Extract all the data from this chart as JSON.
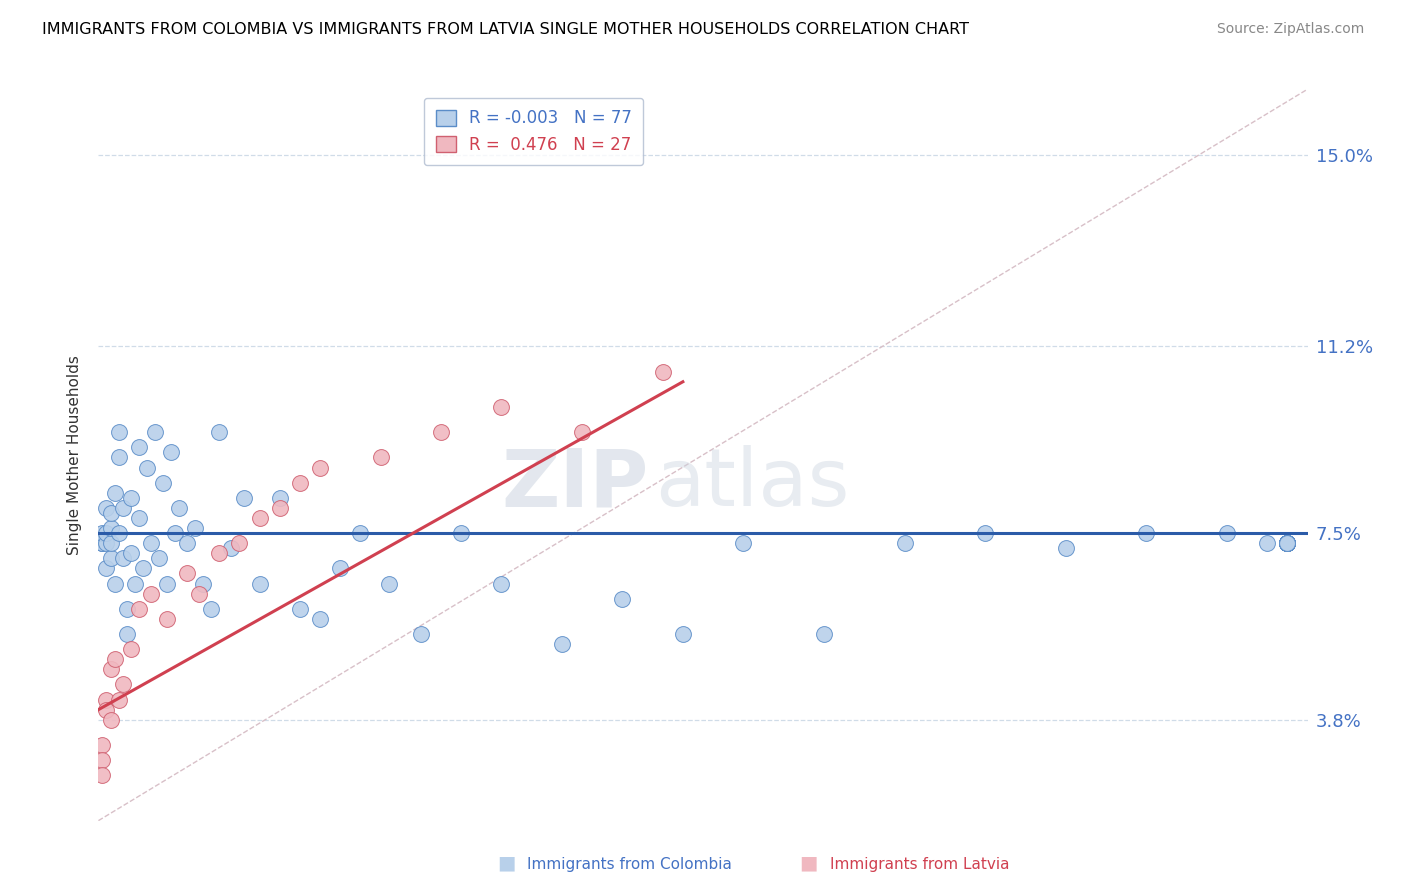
{
  "title": "IMMIGRANTS FROM COLOMBIA VS IMMIGRANTS FROM LATVIA SINGLE MOTHER HOUSEHOLDS CORRELATION CHART",
  "source": "Source: ZipAtlas.com",
  "ylabel": "Single Mother Households",
  "x_min": 0.0,
  "x_max": 0.3,
  "y_min": 0.018,
  "y_max": 0.163,
  "y_ticks": [
    0.038,
    0.075,
    0.112,
    0.15
  ],
  "y_tick_labels": [
    "3.8%",
    "7.5%",
    "11.2%",
    "15.0%"
  ],
  "x_ticks": [
    0.0,
    0.05,
    0.1,
    0.15,
    0.2,
    0.25,
    0.3
  ],
  "legend_blue_label": "R = -0.003   N = 77",
  "legend_pink_label": "R =  0.476   N = 27",
  "blue_color": "#b8d0ea",
  "blue_edge_color": "#5b8dc8",
  "blue_line_color": "#2b5ba8",
  "pink_color": "#f0b8c0",
  "pink_edge_color": "#d06070",
  "pink_line_color": "#d04050",
  "watermark_zip": "ZIP",
  "watermark_atlas": "atlas",
  "diag_color": "#d8c0c8",
  "grid_color": "#d0dce8",
  "colombia_x": [
    0.001,
    0.001,
    0.001,
    0.001,
    0.002,
    0.002,
    0.002,
    0.002,
    0.003,
    0.003,
    0.003,
    0.003,
    0.004,
    0.004,
    0.005,
    0.005,
    0.005,
    0.006,
    0.006,
    0.007,
    0.007,
    0.008,
    0.008,
    0.009,
    0.01,
    0.01,
    0.011,
    0.012,
    0.013,
    0.014,
    0.015,
    0.016,
    0.017,
    0.018,
    0.019,
    0.02,
    0.022,
    0.024,
    0.026,
    0.028,
    0.03,
    0.033,
    0.036,
    0.04,
    0.045,
    0.05,
    0.055,
    0.06,
    0.065,
    0.072,
    0.08,
    0.09,
    0.1,
    0.115,
    0.13,
    0.145,
    0.16,
    0.18,
    0.2,
    0.22,
    0.24,
    0.26,
    0.28,
    0.29,
    0.295,
    0.295,
    0.295,
    0.295,
    0.295,
    0.295,
    0.295,
    0.295,
    0.295,
    0.295,
    0.295,
    0.295,
    0.295
  ],
  "colombia_y": [
    0.073,
    0.073,
    0.073,
    0.075,
    0.068,
    0.073,
    0.075,
    0.08,
    0.07,
    0.073,
    0.076,
    0.079,
    0.065,
    0.083,
    0.09,
    0.095,
    0.075,
    0.08,
    0.07,
    0.06,
    0.055,
    0.071,
    0.082,
    0.065,
    0.092,
    0.078,
    0.068,
    0.088,
    0.073,
    0.095,
    0.07,
    0.085,
    0.065,
    0.091,
    0.075,
    0.08,
    0.073,
    0.076,
    0.065,
    0.06,
    0.095,
    0.072,
    0.082,
    0.065,
    0.082,
    0.06,
    0.058,
    0.068,
    0.075,
    0.065,
    0.055,
    0.075,
    0.065,
    0.053,
    0.062,
    0.055,
    0.073,
    0.055,
    0.073,
    0.075,
    0.072,
    0.075,
    0.075,
    0.073,
    0.073,
    0.073,
    0.073,
    0.073,
    0.073,
    0.073,
    0.073,
    0.073,
    0.073,
    0.073,
    0.073,
    0.073,
    0.073
  ],
  "latvia_x": [
    0.001,
    0.001,
    0.001,
    0.002,
    0.002,
    0.003,
    0.003,
    0.004,
    0.005,
    0.006,
    0.008,
    0.01,
    0.013,
    0.017,
    0.022,
    0.025,
    0.03,
    0.035,
    0.04,
    0.045,
    0.05,
    0.055,
    0.07,
    0.085,
    0.1,
    0.12,
    0.14
  ],
  "latvia_y": [
    0.033,
    0.03,
    0.027,
    0.042,
    0.04,
    0.048,
    0.038,
    0.05,
    0.042,
    0.045,
    0.052,
    0.06,
    0.063,
    0.058,
    0.067,
    0.063,
    0.071,
    0.073,
    0.078,
    0.08,
    0.085,
    0.088,
    0.09,
    0.095,
    0.1,
    0.095,
    0.107
  ],
  "colombia_trend_x": [
    0.0,
    0.3
  ],
  "colombia_trend_y": [
    0.075,
    0.075
  ],
  "latvia_trend_x": [
    0.0,
    0.145
  ],
  "latvia_trend_y": [
    0.04,
    0.105
  ]
}
